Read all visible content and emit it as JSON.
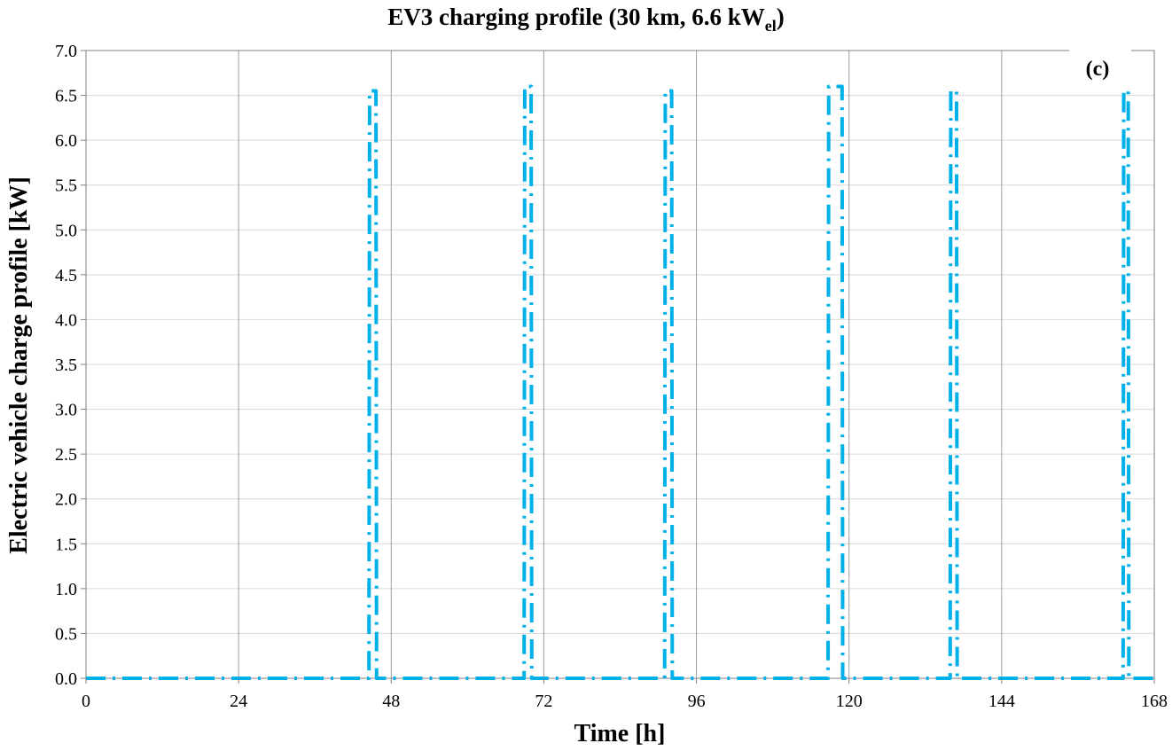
{
  "chart_data": {
    "type": "line",
    "title": {
      "main": "EV3 charging profile (30 km, 6.6 kW",
      "sub": "el",
      "end": ")"
    },
    "panel_label": "(c)",
    "xlabel": "Time [h]",
    "ylabel": "Electric vehicle charge profile [kW]",
    "xlim": [
      0,
      168
    ],
    "ylim": [
      0,
      7
    ],
    "x_ticks": [
      0,
      24,
      48,
      72,
      96,
      120,
      144,
      168
    ],
    "y_ticks": [
      "0.0",
      "0.5",
      "1.0",
      "1.5",
      "2.0",
      "2.5",
      "3.0",
      "3.5",
      "4.0",
      "4.5",
      "5.0",
      "5.5",
      "6.0",
      "6.5",
      "7.0"
    ],
    "grid": true,
    "line_style": "dash-dot",
    "series": [
      {
        "color": "#00b0e8",
        "x": [
          0,
          44.5,
          44.6,
          45.6,
          45.7,
          68.9,
          69.0,
          70.0,
          70.1,
          91.0,
          91.1,
          92.1,
          92.2,
          116.7,
          116.8,
          118.9,
          119.0,
          135.9,
          136.0,
          136.9,
          137.0,
          163.1,
          163.2,
          163.9,
          164.0,
          168
        ],
        "y": [
          0,
          0,
          6.55,
          6.55,
          0,
          0,
          6.6,
          6.6,
          0,
          0,
          6.55,
          6.55,
          0,
          0,
          6.6,
          6.6,
          0,
          0,
          6.55,
          6.55,
          0,
          0,
          6.55,
          6.55,
          0,
          0
        ]
      }
    ]
  }
}
